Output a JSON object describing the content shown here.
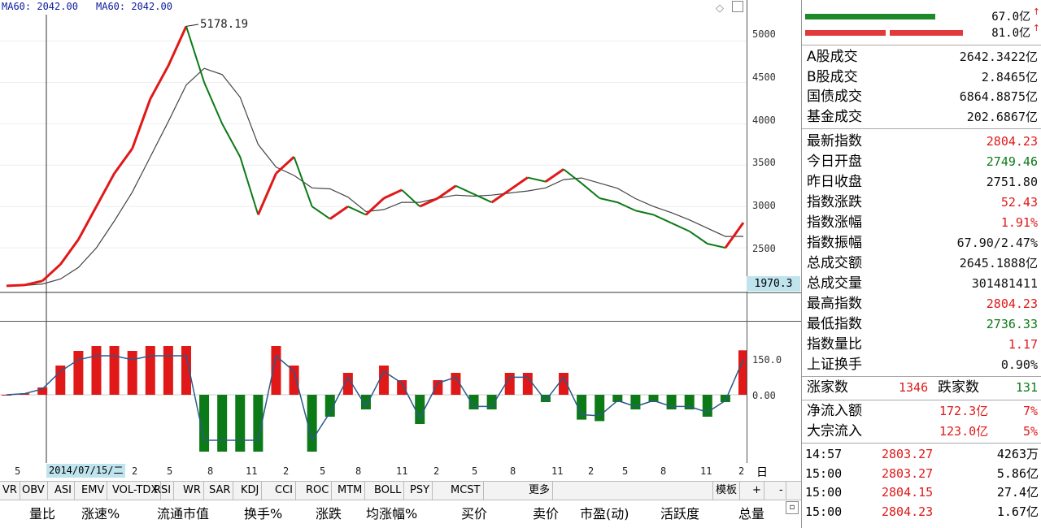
{
  "chart": {
    "ma_label_1": "MA60: 2042.00",
    "ma_label_2": "MA60: 2042.00",
    "peak_label": "5178.19",
    "low_box": "1970.3",
    "date_cursor": "2014/07/15/二",
    "ylim": [
      2000,
      5300
    ],
    "yticks": [
      "5000",
      "4500",
      "4000",
      "3500",
      "3000",
      "2500"
    ],
    "osc_ticks": [
      "150.0",
      "0.00"
    ],
    "date_labels": [
      "5",
      "2",
      "5",
      "8",
      "11",
      "2",
      "5",
      "8",
      "11",
      "2",
      "5",
      "8",
      "11",
      "2",
      "5",
      "8",
      "11",
      "2"
    ],
    "period_button": "日线",
    "colors": {
      "up": "#e01818",
      "down": "#0c7a16",
      "ma": "#444444",
      "osc_line": "#2b5a8a"
    }
  },
  "chart_data": {
    "type": "line",
    "title": "",
    "series": [
      {
        "name": "",
        "values": [
          2040,
          2050,
          2100,
          2300,
          2600,
          3000,
          3400,
          3700,
          4300,
          4700,
          5178,
          4500,
          4000,
          3600,
          2900,
          3400,
          3600,
          3000,
          2850,
          3000,
          2900,
          3100,
          3200,
          3000,
          3100,
          3250,
          3150,
          3050,
          3200,
          3350,
          3300,
          3450,
          3280,
          3100,
          3050,
          2950,
          2900,
          2800,
          2700,
          2550,
          2500,
          2804
        ]
      }
    ],
    "ylim": [
      2000,
      5300
    ]
  },
  "summary": {
    "bar1_value": "67.0亿",
    "bar2_value": "81.0亿"
  },
  "stats": [
    {
      "label": "A股成交",
      "value": "2642.3422亿",
      "color": "blk"
    },
    {
      "label": "B股成交",
      "value": "2.8465亿",
      "color": "blk"
    },
    {
      "label": "国债成交",
      "value": "6864.8875亿",
      "color": "blk"
    },
    {
      "label": "基金成交",
      "value": "202.6867亿",
      "color": "blk"
    },
    {
      "label": "最新指数",
      "value": "2804.23",
      "color": "red"
    },
    {
      "label": "今日开盘",
      "value": "2749.46",
      "color": "grn"
    },
    {
      "label": "昨日收盘",
      "value": "2751.80",
      "color": "blk"
    },
    {
      "label": "指数涨跌",
      "value": "52.43",
      "color": "red"
    },
    {
      "label": "指数涨幅",
      "value": "1.91%",
      "color": "red"
    },
    {
      "label": "指数振幅",
      "value": "67.90/2.47%",
      "color": "blk"
    },
    {
      "label": "总成交额",
      "value": "2645.1888亿",
      "color": "blk"
    },
    {
      "label": "总成交量",
      "value": "301481411",
      "color": "blk"
    },
    {
      "label": "最高指数",
      "value": "2804.23",
      "color": "red"
    },
    {
      "label": "最低指数",
      "value": "2736.33",
      "color": "grn"
    },
    {
      "label": "指数量比",
      "value": "1.17",
      "color": "red"
    },
    {
      "label": "上证换手",
      "value": "0.90%",
      "color": "blk"
    }
  ],
  "advance": {
    "up_label": "涨家数",
    "up_value": "1346",
    "down_label": "跌家数",
    "down_value": "131"
  },
  "flows": [
    {
      "label": "净流入额",
      "value": "172.3亿",
      "pct": "7%"
    },
    {
      "label": "大宗流入",
      "value": "123.0亿",
      "pct": "5%"
    }
  ],
  "ticks": [
    {
      "time": "14:57",
      "price": "2803.27",
      "vol": "4263万"
    },
    {
      "time": "15:00",
      "price": "2803.27",
      "vol": "5.86亿"
    },
    {
      "time": "15:00",
      "price": "2804.15",
      "vol": "27.4亿"
    },
    {
      "time": "15:00",
      "price": "2804.23",
      "vol": "1.67亿"
    }
  ],
  "tabs": [
    "VR",
    "OBV",
    "ASI",
    "EMV",
    "VOL-TDX",
    "RSI",
    "WR",
    "SAR",
    "KDJ",
    "CCI",
    "ROC",
    "MTM",
    "BOLL",
    "PSY",
    "MCST",
    "更多"
  ],
  "tab_right": {
    "template": "模板",
    "plus": "+",
    "minus": "-"
  },
  "columns": [
    "量比",
    "涨速%",
    "流通市值",
    "换手%",
    "涨跌",
    "均涨幅%",
    "买价",
    "卖价",
    "市盈(动)",
    "活跃度",
    "总量"
  ]
}
